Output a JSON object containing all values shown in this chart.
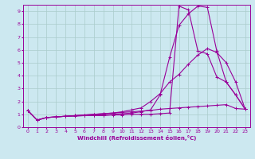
{
  "xlabel": "Windchill (Refroidissement éolien,°C)",
  "bg_color": "#cce8f0",
  "grid_color": "#aacccc",
  "line_color": "#990099",
  "xlim": [
    -0.5,
    23.5
  ],
  "ylim": [
    0,
    9.5
  ],
  "xticks": [
    0,
    1,
    2,
    3,
    4,
    5,
    6,
    7,
    8,
    9,
    10,
    11,
    12,
    13,
    14,
    15,
    16,
    17,
    18,
    19,
    20,
    21,
    22,
    23
  ],
  "yticks": [
    0,
    1,
    2,
    3,
    4,
    5,
    6,
    7,
    8,
    9
  ],
  "lines": [
    [
      1.3,
      0.55,
      0.75,
      0.8,
      0.85,
      0.85,
      0.9,
      0.9,
      0.9,
      0.95,
      0.95,
      1.0,
      1.0,
      1.0,
      1.05,
      1.1,
      9.4,
      9.1,
      5.9,
      5.7,
      3.9,
      3.5,
      2.5,
      1.4
    ],
    [
      1.3,
      0.55,
      0.75,
      0.8,
      0.85,
      0.9,
      0.9,
      0.95,
      0.95,
      1.0,
      1.05,
      1.1,
      1.2,
      1.35,
      2.5,
      5.4,
      7.9,
      8.8,
      9.4,
      9.3,
      5.9,
      3.5,
      2.5,
      1.4
    ],
    [
      1.3,
      0.55,
      0.75,
      0.8,
      0.85,
      0.9,
      0.95,
      1.0,
      1.05,
      1.1,
      1.2,
      1.35,
      1.5,
      2.0,
      2.6,
      3.5,
      4.1,
      4.9,
      5.6,
      6.1,
      5.8,
      5.0,
      3.5,
      1.4
    ],
    [
      1.3,
      0.55,
      0.75,
      0.8,
      0.85,
      0.9,
      0.95,
      1.0,
      1.05,
      1.1,
      1.15,
      1.2,
      1.25,
      1.3,
      1.4,
      1.45,
      1.5,
      1.55,
      1.6,
      1.65,
      1.7,
      1.75,
      1.45,
      1.4
    ]
  ]
}
